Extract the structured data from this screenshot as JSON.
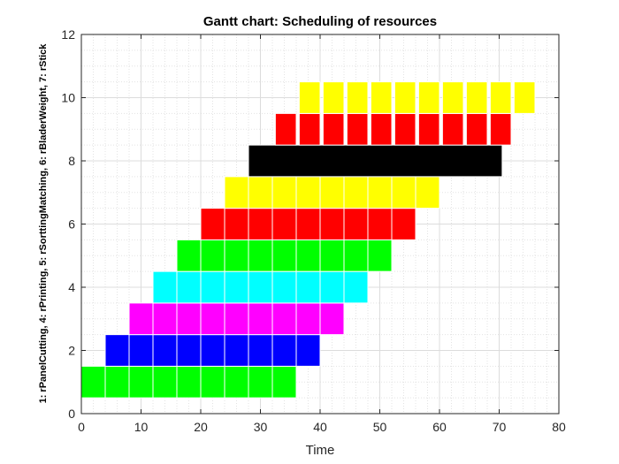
{
  "chart_data": {
    "type": "gantt",
    "title": "Gantt chart: Scheduling of resources",
    "xlabel": "Time",
    "ylabel": "1: rPanelCutting,    4: rPrinting,    5: rSorttingMatching,    6: rBladerWeight,    7: rStick",
    "xlim": [
      0,
      80
    ],
    "ylim": [
      0,
      12
    ],
    "x_ticks": [
      "0",
      "10",
      "20",
      "30",
      "40",
      "50",
      "60",
      "70",
      "80"
    ],
    "y_ticks": [
      "0",
      "2",
      "4",
      "6",
      "8",
      "10",
      "12"
    ],
    "grid": "minor dotted",
    "colors": {
      "green": "#00ff00",
      "blue": "#0000ff",
      "magenta": "#ff00ff",
      "cyan": "#00ffff",
      "red": "#ff0000",
      "yellow": "#ffff00",
      "black": "#000000"
    },
    "rows": [
      {
        "y": 1,
        "color": "green",
        "tasks": [
          [
            0,
            4
          ],
          [
            4,
            8
          ],
          [
            8,
            12
          ],
          [
            12,
            16
          ],
          [
            16,
            20
          ],
          [
            20,
            24
          ],
          [
            24,
            28
          ],
          [
            28,
            32
          ],
          [
            32,
            36
          ]
        ]
      },
      {
        "y": 2,
        "color": "blue",
        "tasks": [
          [
            4,
            8
          ],
          [
            8,
            12
          ],
          [
            12,
            16
          ],
          [
            16,
            20
          ],
          [
            20,
            24
          ],
          [
            24,
            28
          ],
          [
            28,
            32
          ],
          [
            32,
            36
          ],
          [
            36,
            40
          ]
        ]
      },
      {
        "y": 3,
        "color": "magenta",
        "tasks": [
          [
            8,
            12
          ],
          [
            12,
            16
          ],
          [
            16,
            20
          ],
          [
            20,
            24
          ],
          [
            24,
            28
          ],
          [
            28,
            32
          ],
          [
            32,
            36
          ],
          [
            36,
            40
          ],
          [
            40,
            44
          ]
        ]
      },
      {
        "y": 4,
        "color": "cyan",
        "tasks": [
          [
            12,
            16
          ],
          [
            16,
            20
          ],
          [
            20,
            24
          ],
          [
            24,
            28
          ],
          [
            28,
            32
          ],
          [
            32,
            36
          ],
          [
            36,
            40
          ],
          [
            40,
            44
          ],
          [
            44,
            48
          ]
        ]
      },
      {
        "y": 5,
        "color": "green",
        "tasks": [
          [
            16,
            20
          ],
          [
            20,
            24
          ],
          [
            24,
            28
          ],
          [
            28,
            32
          ],
          [
            32,
            36
          ],
          [
            36,
            40
          ],
          [
            40,
            44
          ],
          [
            44,
            48
          ],
          [
            48,
            52
          ]
        ]
      },
      {
        "y": 6,
        "color": "red",
        "tasks": [
          [
            20,
            24
          ],
          [
            24,
            28
          ],
          [
            28,
            32
          ],
          [
            32,
            36
          ],
          [
            36,
            40
          ],
          [
            40,
            44
          ],
          [
            44,
            48
          ],
          [
            48,
            52
          ],
          [
            52,
            56
          ]
        ]
      },
      {
        "y": 7,
        "color": "yellow",
        "tasks": [
          [
            24,
            28
          ],
          [
            28,
            32
          ],
          [
            32,
            36
          ],
          [
            36,
            40
          ],
          [
            40,
            44
          ],
          [
            44,
            48
          ],
          [
            48,
            52
          ],
          [
            52,
            56
          ],
          [
            56,
            60
          ]
        ]
      },
      {
        "y": 8,
        "color": "black",
        "tasks": [
          [
            28,
            70.5
          ]
        ]
      },
      {
        "y": 9,
        "color": "red",
        "tasks": [
          [
            32.5,
            36
          ],
          [
            36.5,
            40
          ],
          [
            40.5,
            44
          ],
          [
            44.5,
            48
          ],
          [
            48.5,
            52
          ],
          [
            52.5,
            56
          ],
          [
            56.5,
            60
          ],
          [
            60.5,
            64
          ],
          [
            64.5,
            68
          ],
          [
            68.5,
            72
          ]
        ]
      },
      {
        "y": 10,
        "color": "yellow",
        "tasks": [
          [
            36.5,
            40
          ],
          [
            40.5,
            44
          ],
          [
            44.5,
            48
          ],
          [
            48.5,
            52
          ],
          [
            52.5,
            56
          ],
          [
            56.5,
            60
          ],
          [
            60.5,
            64
          ],
          [
            64.5,
            68
          ],
          [
            68.5,
            72
          ],
          [
            72.5,
            76
          ]
        ]
      }
    ]
  }
}
